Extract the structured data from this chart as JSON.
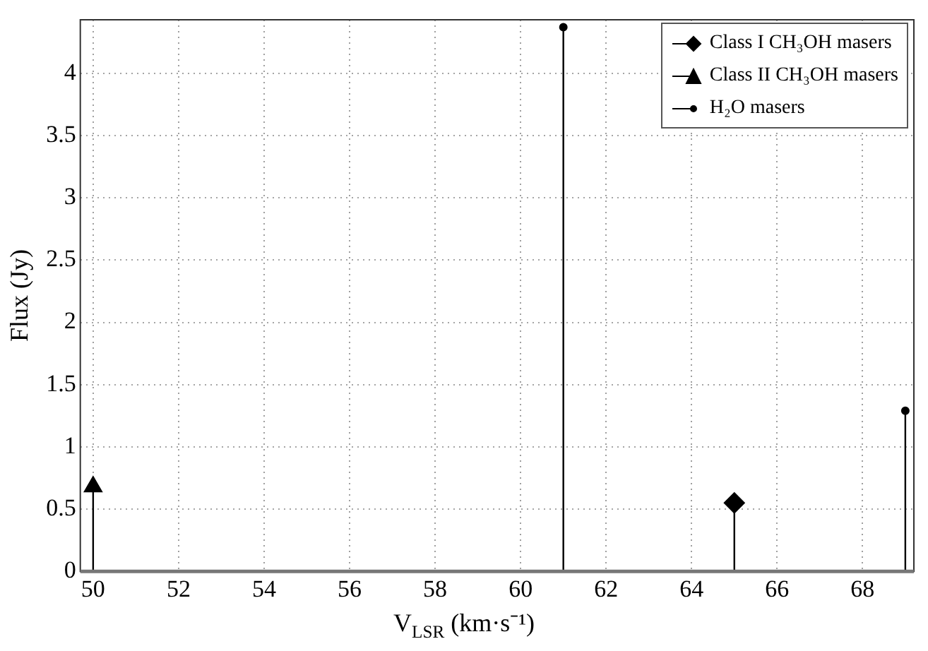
{
  "chart_data": {
    "type": "lollipop",
    "xlabel": "V$_{LSR}$ (km·s⁻¹)",
    "ylabel": "Flux (Jy)",
    "xlim": [
      49.7,
      69.2
    ],
    "xticks": [
      50,
      52,
      54,
      56,
      58,
      60,
      62,
      64,
      66,
      68
    ],
    "ylim": [
      0,
      4.43
    ],
    "yticks": [
      0,
      0.5,
      1,
      1.5,
      2,
      2.5,
      3,
      3.5,
      4
    ],
    "grid": true,
    "legend": "top right",
    "line_style": "solid",
    "series": [
      {
        "name": "Class I CH₃OH masers",
        "color": "#000000",
        "marker": "diamond",
        "x": [
          65
        ],
        "values": [
          0.55
        ]
      },
      {
        "name": "Class II CH₃OH masers",
        "color": "#000000",
        "marker": "triangle",
        "x": [
          50
        ],
        "values": [
          0.68
        ]
      },
      {
        "name": "H₂O masers",
        "color": "#000000",
        "marker": "circle",
        "x": [
          61,
          69
        ],
        "values": [
          4.37,
          1.29
        ]
      }
    ]
  }
}
